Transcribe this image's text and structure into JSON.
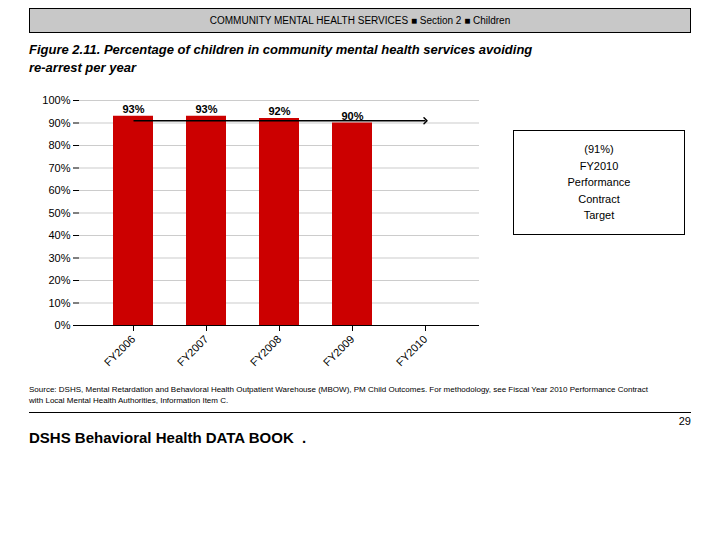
{
  "chart_data": {
    "type": "bar",
    "header": "COMMUNITY MENTAL HEALTH SERVICES ■ Section 2 ■ Children",
    "title": "Figure 2.11.  Percentage of children in community mental health services avoiding\nre-arrest per year",
    "categories": [
      "FY2006",
      "FY2007",
      "FY2008",
      "FY2009",
      "FY2010"
    ],
    "values": [
      93,
      93,
      92,
      90,
      null
    ],
    "value_labels": [
      "93%",
      "93%",
      "92%",
      "90%",
      null
    ],
    "color": "#cc0000",
    "data_labels": true,
    "ylim": [
      0,
      100
    ],
    "yticks": [
      {
        "value": 0,
        "label": "0%"
      },
      {
        "value": 10,
        "label": "10%"
      },
      {
        "value": 20,
        "label": "20%"
      },
      {
        "value": 30,
        "label": "30%"
      },
      {
        "value": 40,
        "label": "40%"
      },
      {
        "value": 50,
        "label": "50%"
      },
      {
        "value": 60,
        "label": "60%"
      },
      {
        "value": 70,
        "label": "70%"
      },
      {
        "value": 80,
        "label": "80%"
      },
      {
        "value": 90,
        "label": "90%"
      },
      {
        "value": 100,
        "label": "100%"
      }
    ],
    "grid": true,
    "target": {
      "value": 91,
      "label": "(91%)\nFY2010\nPerformance\nContract\nTarget"
    },
    "source": "Source: DSHS, Mental Retardation and Behavioral Health Outpatient Warehouse (MBOW), PM Child Outcomes. For methodology, see Fiscal Year 2010 Performance Contract\nwith Local Mental Health Authorities, Information Item C.",
    "page_number": "29",
    "footer": "DSHS Behavioral Health DATA BOOK  ."
  }
}
